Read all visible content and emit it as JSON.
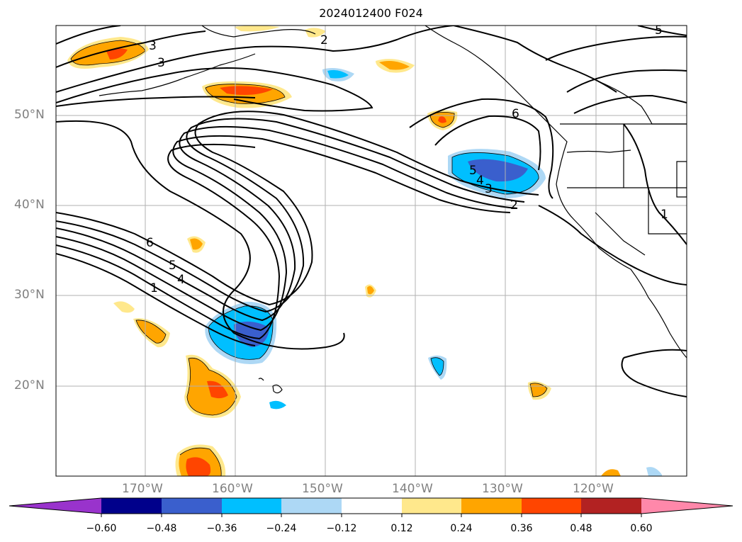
{
  "title": "2024012400 F024",
  "colors": {
    "neg_060": "#9933cc",
    "neg_048": "#00008b",
    "neg_036": "#3a5fcd",
    "neg_024": "#00bfff",
    "neg_012": "#add8f5",
    "zero": "#ffffff",
    "pos_012": "#ffe88c",
    "pos_024": "#ffa500",
    "pos_036": "#ff4500",
    "pos_048": "#b22222",
    "pos_060": "#ff88aa"
  },
  "axes": {
    "lat_labels": [
      "50°N",
      "40°N",
      "30°N",
      "20°N"
    ],
    "lon_labels": [
      "170°W",
      "160°W",
      "150°W",
      "140°W",
      "130°W",
      "120°W"
    ]
  },
  "colorbar": {
    "ticks": [
      "−0.60",
      "−0.48",
      "−0.36",
      "−0.24",
      "−0.12",
      "0.12",
      "0.24",
      "0.36",
      "0.48",
      "0.60"
    ]
  },
  "contour_labels": [
    "3",
    "3",
    "2",
    "6",
    "5",
    "4",
    "3",
    "2",
    "6",
    "5",
    "4",
    "1",
    "1",
    "5"
  ]
}
